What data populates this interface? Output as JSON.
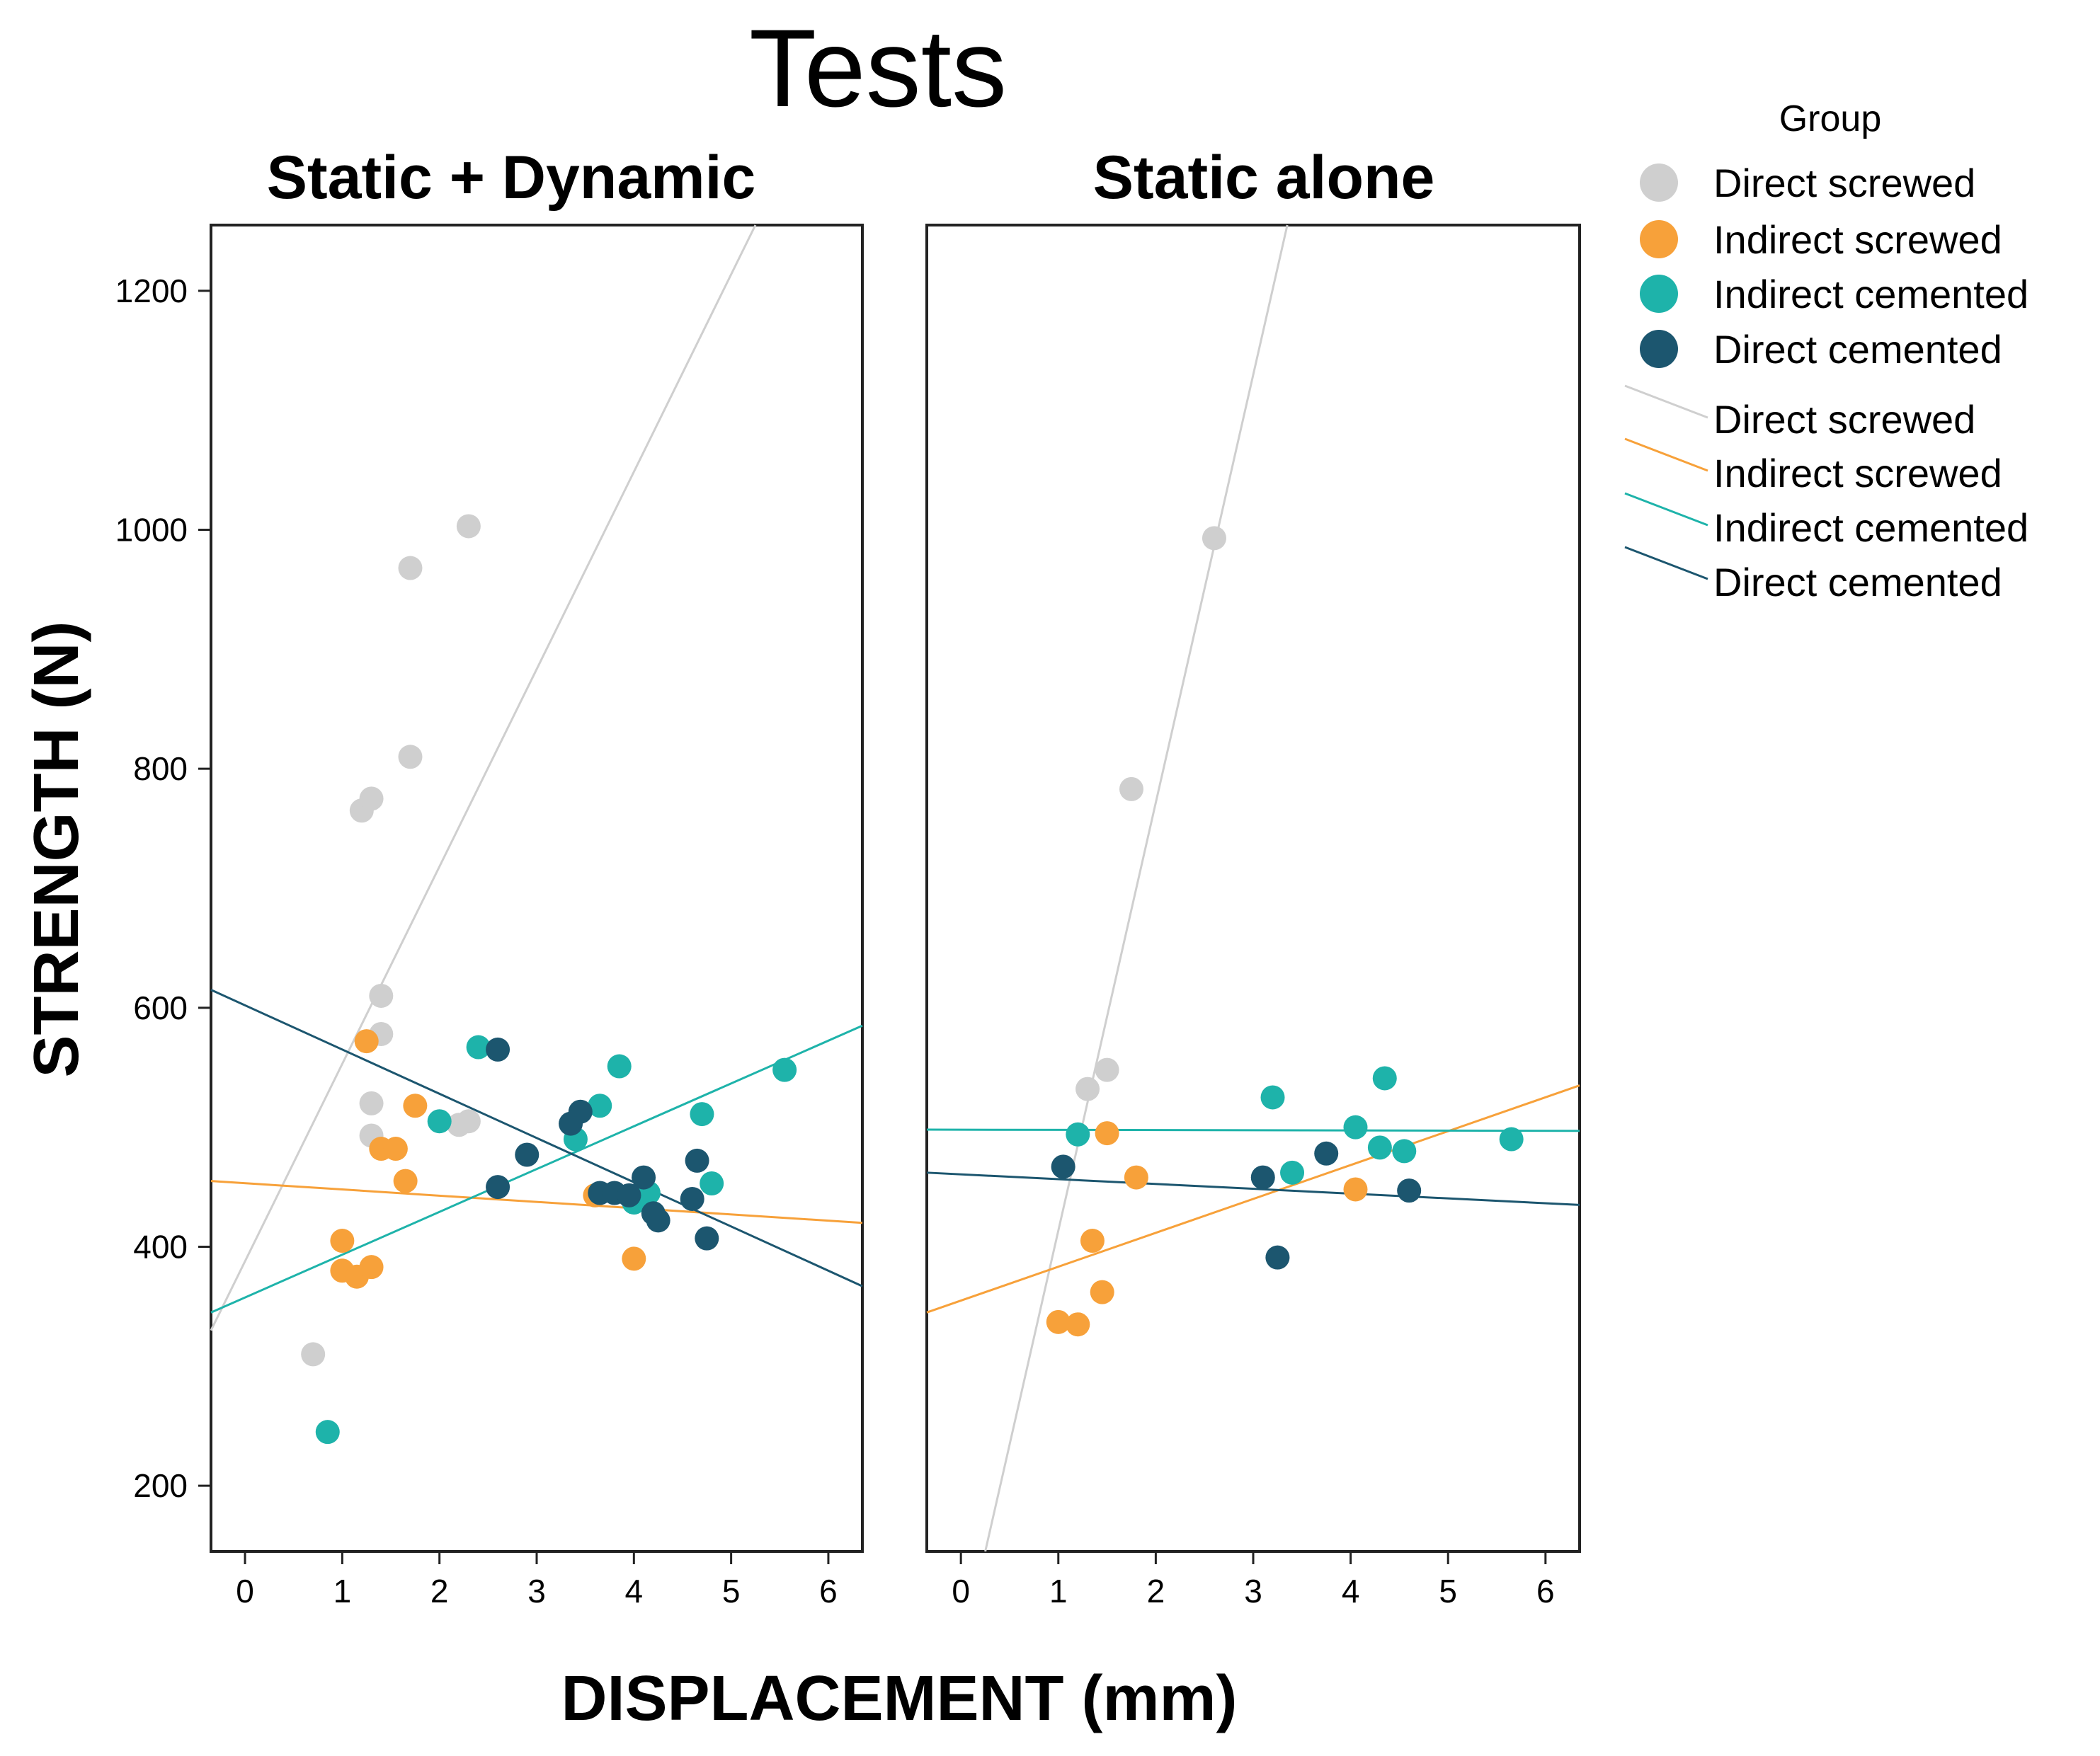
{
  "chart_data": {
    "type": "scatter",
    "title": "Tests",
    "xlabel": "DISPLACEMENT (mm)",
    "ylabel": "STRENGTH (N)",
    "xlim": [
      -0.35,
      6.35
    ],
    "ylim": [
      145,
      1255
    ],
    "xticks": [
      0,
      1,
      2,
      3,
      4,
      5,
      6
    ],
    "yticks": [
      200,
      400,
      600,
      800,
      1000,
      1200
    ],
    "legend": {
      "title": "Group",
      "placement": "right",
      "point_entries": [
        "Direct screwed",
        "Indirect screwed",
        "Indirect cemented",
        "Direct cemented"
      ],
      "line_entries": [
        "Direct screwed",
        "Indirect screwed",
        "Indirect cemented",
        "Direct cemented"
      ]
    },
    "series_colors": {
      "Direct screwed": "#cfcfcf",
      "Indirect screwed": "#f7a13a",
      "Indirect cemented": "#1eb3aa",
      "Direct cemented": "#1c566f"
    },
    "panels": [
      {
        "title": "Static + Dynamic",
        "series": [
          {
            "name": "Direct screwed",
            "points": [
              [
                0.7,
                310
              ],
              [
                1.2,
                765
              ],
              [
                1.3,
                775
              ],
              [
                1.4,
                610
              ],
              [
                1.4,
                578
              ],
              [
                1.3,
                520
              ],
              [
                1.3,
                493
              ],
              [
                1.7,
                968
              ],
              [
                1.7,
                810
              ],
              [
                2.3,
                1003
              ],
              [
                2.2,
                502
              ],
              [
                2.3,
                505
              ]
            ],
            "fit": [
              [
                -0.35,
                330
              ],
              [
                5.25,
                1255
              ]
            ]
          },
          {
            "name": "Indirect screwed",
            "points": [
              [
                1.25,
                572
              ],
              [
                1.0,
                405
              ],
              [
                1.0,
                380
              ],
              [
                1.15,
                375
              ],
              [
                1.3,
                383
              ],
              [
                1.4,
                482
              ],
              [
                1.55,
                482
              ],
              [
                1.65,
                455
              ],
              [
                1.75,
                518
              ],
              [
                3.6,
                443
              ],
              [
                4.0,
                390
              ]
            ],
            "fit": [
              [
                -0.35,
                455
              ],
              [
                6.35,
                420
              ]
            ]
          },
          {
            "name": "Indirect cemented",
            "points": [
              [
                0.85,
                245
              ],
              [
                2.0,
                505
              ],
              [
                2.4,
                567
              ],
              [
                3.4,
                490
              ],
              [
                3.65,
                518
              ],
              [
                3.85,
                551
              ],
              [
                4.0,
                437
              ],
              [
                4.15,
                445
              ],
              [
                4.7,
                511
              ],
              [
                4.8,
                453
              ],
              [
                5.55,
                548
              ]
            ],
            "fit": [
              [
                -0.35,
                345
              ],
              [
                6.35,
                585
              ]
            ]
          },
          {
            "name": "Direct cemented",
            "points": [
              [
                2.6,
                565
              ],
              [
                2.6,
                450
              ],
              [
                2.9,
                477
              ],
              [
                3.35,
                503
              ],
              [
                3.45,
                513
              ],
              [
                3.65,
                445
              ],
              [
                3.8,
                445
              ],
              [
                3.95,
                443
              ],
              [
                4.1,
                458
              ],
              [
                4.2,
                428
              ],
              [
                4.25,
                422
              ],
              [
                4.6,
                440
              ],
              [
                4.65,
                472
              ],
              [
                4.75,
                407
              ]
            ],
            "fit": [
              [
                -0.35,
                615
              ],
              [
                6.35,
                367
              ]
            ]
          }
        ]
      },
      {
        "title": "Static alone",
        "series": [
          {
            "name": "Direct screwed",
            "points": [
              [
                1.3,
                532
              ],
              [
                1.5,
                548
              ],
              [
                1.75,
                783
              ],
              [
                2.6,
                993
              ]
            ],
            "fit": [
              [
                0.25,
                145
              ],
              [
                3.35,
                1255
              ]
            ]
          },
          {
            "name": "Indirect screwed",
            "points": [
              [
                1.0,
                337
              ],
              [
                1.2,
                335
              ],
              [
                1.35,
                405
              ],
              [
                1.45,
                362
              ],
              [
                1.5,
                495
              ],
              [
                1.8,
                458
              ],
              [
                4.05,
                448
              ]
            ],
            "fit": [
              [
                -0.35,
                345
              ],
              [
                6.35,
                535
              ]
            ]
          },
          {
            "name": "Indirect cemented",
            "points": [
              [
                1.2,
                494
              ],
              [
                3.2,
                525
              ],
              [
                3.4,
                462
              ],
              [
                4.05,
                500
              ],
              [
                4.3,
                483
              ],
              [
                4.35,
                541
              ],
              [
                4.55,
                480
              ],
              [
                5.65,
                490
              ]
            ],
            "fit": [
              [
                -0.35,
                498
              ],
              [
                6.35,
                497
              ]
            ]
          },
          {
            "name": "Direct cemented",
            "points": [
              [
                1.05,
                467
              ],
              [
                3.1,
                458
              ],
              [
                3.25,
                391
              ],
              [
                3.75,
                478
              ],
              [
                4.6,
                447
              ]
            ],
            "fit": [
              [
                -0.35,
                462
              ],
              [
                6.35,
                435
              ]
            ]
          }
        ]
      }
    ]
  }
}
